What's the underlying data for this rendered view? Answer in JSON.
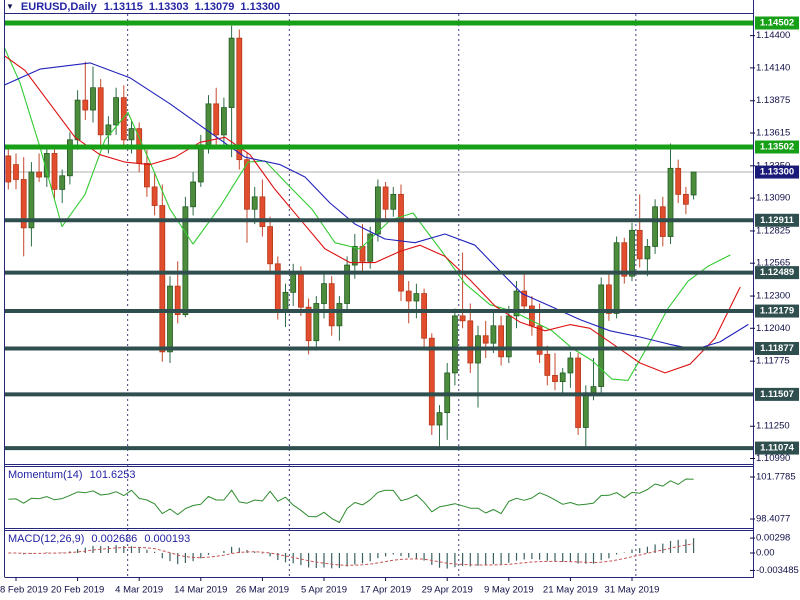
{
  "header": {
    "symbol": "EURUSD,Daily",
    "open": "1.13115",
    "high": "1.13303",
    "low": "1.13079",
    "close": "1.13300"
  },
  "colors": {
    "bull_fill": "#4d8c3c",
    "bull_stroke": "#235c23",
    "bull_wick": "#2c6b46",
    "bear_fill": "#e24d2d",
    "bear_stroke": "#b33a1c",
    "bear_wick": "#c3482c",
    "ma_fast": "#33cc33",
    "ma_mid": "#dd1111",
    "ma_slow": "#2222bb",
    "level_green": "#17a017",
    "level_dark": "#2f4f4f",
    "current_price_line": "#b0b0b0",
    "current_price_box": "#1a1a78",
    "axis_text": "#101048",
    "header_text": "#2424a4",
    "separator": "#404080",
    "border": "#26267a",
    "momentum_line": "#2e8b2e",
    "macd_bar": "#3a6060",
    "macd_signal": "#c65353",
    "label_text_on_box": "#ffffff"
  },
  "chart_data": {
    "type": "candlestick",
    "symbol": "EURUSD",
    "timeframe": "Daily",
    "title": "EURUSD,Daily 1.13115 1.13303 1.13079 1.13300",
    "price_range_visible": [
      1.1094,
      1.1458
    ],
    "grid": false,
    "current_price": {
      "value": 1.133,
      "label": "1.13300"
    },
    "level_lines": [
      {
        "price": 1.14502,
        "label": "1.14502",
        "style": "green"
      },
      {
        "price": 1.13502,
        "label": "1.13502",
        "style": "green"
      },
      {
        "price": 1.12911,
        "label": "1.12911",
        "style": "dark"
      },
      {
        "price": 1.12489,
        "label": "1.12489",
        "style": "dark"
      },
      {
        "price": 1.12179,
        "label": "1.12179",
        "style": "dark"
      },
      {
        "price": 1.11877,
        "label": "1.11877",
        "style": "dark"
      },
      {
        "price": 1.11507,
        "label": "1.11507",
        "style": "dark"
      },
      {
        "price": 1.11074,
        "label": "1.11074",
        "style": "dark"
      }
    ],
    "price_axis_labels": [
      {
        "value": 1.144,
        "label": "1.14400"
      },
      {
        "value": 1.1414,
        "label": "1.14140"
      },
      {
        "value": 1.13875,
        "label": "1.13875"
      },
      {
        "value": 1.13615,
        "label": "1.13615"
      },
      {
        "value": 1.1335,
        "label": "1.13350"
      },
      {
        "value": 1.1309,
        "label": "1.13090"
      },
      {
        "value": 1.12825,
        "label": "1.12825"
      },
      {
        "value": 1.12565,
        "label": "1.12565"
      },
      {
        "value": 1.123,
        "label": "1.12300"
      },
      {
        "value": 1.1204,
        "label": "1.12040"
      },
      {
        "value": 1.11775,
        "label": "1.11775"
      },
      {
        "value": 1.1125,
        "label": "1.11250"
      },
      {
        "value": 1.1099,
        "label": "1.10990"
      }
    ],
    "date_ticks": [
      {
        "index": 1,
        "label": "8 Feb 2019"
      },
      {
        "index": 9,
        "label": "20 Feb 2019"
      },
      {
        "index": 17,
        "label": "4 Mar 2019"
      },
      {
        "index": 25,
        "label": "14 Mar 2019"
      },
      {
        "index": 33,
        "label": "26 Mar 2019"
      },
      {
        "index": 41,
        "label": "5 Apr 2019"
      },
      {
        "index": 49,
        "label": "17 Apr 2019"
      },
      {
        "index": 57,
        "label": "29 Apr 2019"
      },
      {
        "index": 65,
        "label": "9 May 2019"
      },
      {
        "index": 73,
        "label": "21 May 2019"
      },
      {
        "index": 81,
        "label": "31 May 2019"
      }
    ],
    "month_separator_indices": [
      16,
      37,
      59,
      82
    ],
    "candles": [
      [
        1.1343,
        1.1352,
        1.1316,
        1.1322
      ],
      [
        1.1336,
        1.1345,
        1.1316,
        1.1324
      ],
      [
        1.1324,
        1.1342,
        1.1262,
        1.1285
      ],
      [
        1.1285,
        1.1338,
        1.127,
        1.133
      ],
      [
        1.133,
        1.1345,
        1.1322,
        1.1326
      ],
      [
        1.1326,
        1.1352,
        1.1318,
        1.1345
      ],
      [
        1.1345,
        1.135,
        1.1308,
        1.1316
      ],
      [
        1.1316,
        1.1332,
        1.1305,
        1.1327
      ],
      [
        1.1327,
        1.1362,
        1.132,
        1.1356
      ],
      [
        1.1356,
        1.1396,
        1.1348,
        1.1388
      ],
      [
        1.1388,
        1.1419,
        1.1372,
        1.138
      ],
      [
        1.138,
        1.1415,
        1.137,
        1.1398
      ],
      [
        1.1398,
        1.1405,
        1.1352,
        1.136
      ],
      [
        1.136,
        1.1375,
        1.1345,
        1.1368
      ],
      [
        1.1368,
        1.1398,
        1.136,
        1.139
      ],
      [
        1.139,
        1.14,
        1.135,
        1.1356
      ],
      [
        1.1356,
        1.1372,
        1.1345,
        1.1365
      ],
      [
        1.1365,
        1.137,
        1.133,
        1.1337
      ],
      [
        1.1337,
        1.1348,
        1.131,
        1.1318
      ],
      [
        1.1318,
        1.133,
        1.1295,
        1.1303
      ],
      [
        1.1303,
        1.132,
        1.1177,
        1.1185
      ],
      [
        1.1185,
        1.1246,
        1.1176,
        1.1238
      ],
      [
        1.1238,
        1.1258,
        1.1208,
        1.1215
      ],
      [
        1.1215,
        1.131,
        1.1213,
        1.1302
      ],
      [
        1.1302,
        1.133,
        1.1295,
        1.1322
      ],
      [
        1.1322,
        1.136,
        1.1318,
        1.1352
      ],
      [
        1.1352,
        1.1392,
        1.1345,
        1.1385
      ],
      [
        1.1385,
        1.1398,
        1.1352,
        1.136
      ],
      [
        1.136,
        1.139,
        1.135,
        1.1382
      ],
      [
        1.1382,
        1.1448,
        1.1342,
        1.1438
      ],
      [
        1.1438,
        1.1445,
        1.1332,
        1.134
      ],
      [
        1.134,
        1.1346,
        1.1273,
        1.13
      ],
      [
        1.13,
        1.1318,
        1.1288,
        1.131
      ],
      [
        1.131,
        1.1324,
        1.1278,
        1.1286
      ],
      [
        1.1286,
        1.1294,
        1.1248,
        1.1256
      ],
      [
        1.1256,
        1.1262,
        1.1211,
        1.1219
      ],
      [
        1.1219,
        1.124,
        1.1205,
        1.1233
      ],
      [
        1.1233,
        1.1256,
        1.1222,
        1.1248
      ],
      [
        1.1248,
        1.1254,
        1.1214,
        1.1221
      ],
      [
        1.1221,
        1.1228,
        1.1183,
        1.1194
      ],
      [
        1.1194,
        1.123,
        1.1186,
        1.1224
      ],
      [
        1.1224,
        1.1248,
        1.1212,
        1.124
      ],
      [
        1.124,
        1.1246,
        1.1198,
        1.1206
      ],
      [
        1.1206,
        1.123,
        1.1194,
        1.1224
      ],
      [
        1.1224,
        1.1262,
        1.1218,
        1.1255
      ],
      [
        1.1255,
        1.128,
        1.1244,
        1.127
      ],
      [
        1.127,
        1.1288,
        1.125,
        1.1258
      ],
      [
        1.1258,
        1.1286,
        1.1252,
        1.128
      ],
      [
        1.128,
        1.1324,
        1.1274,
        1.1318
      ],
      [
        1.1318,
        1.1322,
        1.1292,
        1.13
      ],
      [
        1.13,
        1.1318,
        1.1294,
        1.1312
      ],
      [
        1.1312,
        1.132,
        1.1226,
        1.1234
      ],
      [
        1.1234,
        1.1242,
        1.1208,
        1.1226
      ],
      [
        1.1226,
        1.124,
        1.1212,
        1.1232
      ],
      [
        1.1232,
        1.1236,
        1.1188,
        1.1196
      ],
      [
        1.1196,
        1.12,
        1.1118,
        1.1126
      ],
      [
        1.1126,
        1.1142,
        1.1106,
        1.1136
      ],
      [
        1.1136,
        1.1176,
        1.1114,
        1.1168
      ],
      [
        1.1168,
        1.122,
        1.1158,
        1.1214
      ],
      [
        1.1214,
        1.1265,
        1.1204,
        1.121
      ],
      [
        1.121,
        1.1224,
        1.1168,
        1.1176
      ],
      [
        1.1176,
        1.1206,
        1.114,
        1.1198
      ],
      [
        1.1198,
        1.121,
        1.118,
        1.1192
      ],
      [
        1.1192,
        1.1218,
        1.1184,
        1.1206
      ],
      [
        1.1206,
        1.1214,
        1.1174,
        1.1181
      ],
      [
        1.1181,
        1.1222,
        1.1176,
        1.1214
      ],
      [
        1.1214,
        1.1242,
        1.1204,
        1.1234
      ],
      [
        1.1234,
        1.1248,
        1.1216,
        1.1222
      ],
      [
        1.1222,
        1.123,
        1.1198,
        1.1206
      ],
      [
        1.1206,
        1.1224,
        1.1176,
        1.1183
      ],
      [
        1.1183,
        1.119,
        1.1158,
        1.1166
      ],
      [
        1.1166,
        1.1184,
        1.1154,
        1.1161
      ],
      [
        1.1161,
        1.1172,
        1.115,
        1.1168
      ],
      [
        1.1168,
        1.1185,
        1.1156,
        1.118
      ],
      [
        1.118,
        1.1184,
        1.1118,
        1.1124
      ],
      [
        1.1124,
        1.1158,
        1.1107,
        1.1152
      ],
      [
        1.1152,
        1.118,
        1.1146,
        1.1157
      ],
      [
        1.1157,
        1.1245,
        1.115,
        1.1239
      ],
      [
        1.1239,
        1.125,
        1.121,
        1.1216
      ],
      [
        1.1216,
        1.1278,
        1.1212,
        1.1273
      ],
      [
        1.1273,
        1.1277,
        1.124,
        1.1246
      ],
      [
        1.1246,
        1.1289,
        1.1242,
        1.1283
      ],
      [
        1.1283,
        1.1312,
        1.1253,
        1.126
      ],
      [
        1.126,
        1.1276,
        1.1246,
        1.127
      ],
      [
        1.127,
        1.1308,
        1.1264,
        1.1302
      ],
      [
        1.1302,
        1.131,
        1.127,
        1.1278
      ],
      [
        1.1278,
        1.1353,
        1.1272,
        1.1333
      ],
      [
        1.1333,
        1.134,
        1.1305,
        1.1312
      ],
      [
        1.1312,
        1.1318,
        1.1296,
        1.1304
      ],
      [
        1.13115,
        1.13303,
        1.13079,
        1.133
      ]
    ],
    "moving_averages": [
      {
        "name": "ma-fast-green",
        "color": "#33cc33",
        "points": [
          [
            4,
            1.1431
          ],
          [
            20,
            1.1402
          ],
          [
            40,
            1.135
          ],
          [
            62,
            1.1286
          ],
          [
            85,
            1.1312
          ],
          [
            105,
            1.1356
          ],
          [
            128,
            1.1378
          ],
          [
            150,
            1.1338
          ],
          [
            170,
            1.13
          ],
          [
            193,
            1.1272
          ],
          [
            220,
            1.1302
          ],
          [
            248,
            1.1338
          ],
          [
            265,
            1.1339
          ],
          [
            290,
            1.1318
          ],
          [
            312,
            1.13
          ],
          [
            335,
            1.1273
          ],
          [
            360,
            1.1268
          ],
          [
            390,
            1.1291
          ],
          [
            413,
            1.1297
          ],
          [
            440,
            1.1268
          ],
          [
            465,
            1.124
          ],
          [
            490,
            1.1223
          ],
          [
            512,
            1.1218
          ],
          [
            532,
            1.121
          ],
          [
            552,
            1.1202
          ],
          [
            572,
            1.1188
          ],
          [
            592,
            1.1178
          ],
          [
            612,
            1.1163
          ],
          [
            628,
            1.1162
          ],
          [
            648,
            1.119
          ],
          [
            668,
            1.122
          ],
          [
            688,
            1.1242
          ],
          [
            708,
            1.1254
          ],
          [
            730,
            1.1263
          ]
        ]
      },
      {
        "name": "ma-mid-red",
        "color": "#dd1111",
        "points": [
          [
            4,
            1.1424
          ],
          [
            25,
            1.1412
          ],
          [
            50,
            1.1385
          ],
          [
            75,
            1.1358
          ],
          [
            100,
            1.1344
          ],
          [
            125,
            1.1338
          ],
          [
            150,
            1.1336
          ],
          [
            175,
            1.1342
          ],
          [
            200,
            1.1354
          ],
          [
            225,
            1.1358
          ],
          [
            250,
            1.1344
          ],
          [
            275,
            1.1316
          ],
          [
            300,
            1.1292
          ],
          [
            325,
            1.1268
          ],
          [
            350,
            1.1257
          ],
          [
            375,
            1.1257
          ],
          [
            400,
            1.1266
          ],
          [
            420,
            1.1271
          ],
          [
            445,
            1.1262
          ],
          [
            470,
            1.1243
          ],
          [
            495,
            1.1222
          ],
          [
            520,
            1.1209
          ],
          [
            545,
            1.1202
          ],
          [
            570,
            1.1207
          ],
          [
            590,
            1.1204
          ],
          [
            615,
            1.119
          ],
          [
            640,
            1.1176
          ],
          [
            665,
            1.1168
          ],
          [
            690,
            1.1175
          ],
          [
            715,
            1.1196
          ],
          [
            740,
            1.1237
          ]
        ]
      },
      {
        "name": "ma-slow-blue",
        "color": "#2222bb",
        "points": [
          [
            4,
            1.14
          ],
          [
            40,
            1.1413
          ],
          [
            90,
            1.1418
          ],
          [
            130,
            1.1406
          ],
          [
            170,
            1.1385
          ],
          [
            210,
            1.1362
          ],
          [
            245,
            1.1342
          ],
          [
            280,
            1.1336
          ],
          [
            305,
            1.1326
          ],
          [
            330,
            1.1305
          ],
          [
            355,
            1.1288
          ],
          [
            385,
            1.1276
          ],
          [
            415,
            1.1273
          ],
          [
            445,
            1.128
          ],
          [
            475,
            1.1271
          ],
          [
            500,
            1.125
          ],
          [
            522,
            1.1232
          ],
          [
            550,
            1.1222
          ],
          [
            580,
            1.1211
          ],
          [
            610,
            1.1202
          ],
          [
            640,
            1.1197
          ],
          [
            670,
            1.1191
          ],
          [
            695,
            1.1187
          ],
          [
            720,
            1.1193
          ],
          [
            748,
            1.1207
          ]
        ]
      }
    ],
    "momentum": {
      "name": "Momentum(14)",
      "period": 14,
      "current_value": "101.6253",
      "axis_labels": [
        {
          "value": 101.7785,
          "label": "101.7785"
        },
        {
          "value": 98.4077,
          "label": "98.4077"
        }
      ]
    },
    "macd": {
      "name": "MACD(12,26,9)",
      "fast": 12,
      "slow": 26,
      "signal_period": 9,
      "current_main": "0.002686",
      "current_signal": "0.000193",
      "axis_labels": [
        {
          "value": 0.00298,
          "label": "0.00298"
        },
        {
          "value": 0.0,
          "label": "0.00"
        },
        {
          "value": -0.003485,
          "label": "-0.003485"
        }
      ]
    }
  }
}
